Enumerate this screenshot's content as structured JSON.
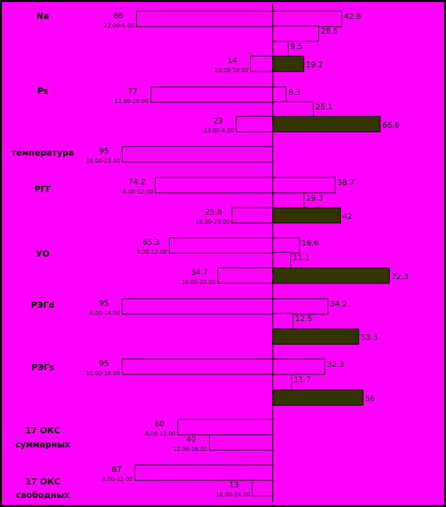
{
  "chart_data": {
    "type": "bar",
    "orientation": "horizontal-diverging",
    "background_color": "#ff00ff",
    "bar_outline_color": "#000000",
    "open_bar_color": "#ff00ff",
    "filled_bar_color": "#333300",
    "groups": [
      {
        "label": [
          "Na"
        ],
        "left": [
          {
            "value": "86",
            "time": "22.00-6.00"
          },
          {
            "value": "14",
            "time": "10.00-14.00"
          }
        ],
        "right": [
          {
            "value": "42.8",
            "filled": false
          },
          {
            "value": "28.5",
            "filled": false
          },
          {
            "value": "9.5",
            "filled": false
          },
          {
            "value": "19.2",
            "filled": true
          }
        ]
      },
      {
        "label": [
          "Ps"
        ],
        "left": [
          {
            "value": "77",
            "time": "12.00-20.00"
          },
          {
            "value": "23",
            "time": "23.00-4.00"
          }
        ],
        "right": [
          {
            "value": "8.3",
            "filled": false
          },
          {
            "value": "25.1",
            "filled": false
          },
          {
            "value": "66.6",
            "filled": true
          }
        ]
      },
      {
        "label": [
          "температура"
        ],
        "left": [
          {
            "value": "95",
            "time": "18.00-23.00"
          }
        ],
        "right": []
      },
      {
        "label": [
          "РГГ"
        ],
        "left": [
          {
            "value": "74.2",
            "time": "4.00-12.00"
          },
          {
            "value": "25.8",
            "time": "16.00-20.00"
          }
        ],
        "right": [
          {
            "value": "38.7",
            "filled": false
          },
          {
            "value": "19.3",
            "filled": false
          },
          {
            "value": "42",
            "filled": true
          }
        ]
      },
      {
        "label": [
          "УО"
        ],
        "left": [
          {
            "value": "65.3",
            "time": "8.00-12.00"
          },
          {
            "value": "34.7",
            "time": "16.00-20.00"
          }
        ],
        "right": [
          {
            "value": "16.6",
            "filled": false
          },
          {
            "value": "11.1",
            "filled": false
          },
          {
            "value": "72.3",
            "filled": true
          }
        ]
      },
      {
        "label": [
          "РЭГd"
        ],
        "left": [
          {
            "value": "95",
            "time": "8.00-14.00"
          }
        ],
        "right": [
          {
            "value": "34.2",
            "filled": false
          },
          {
            "value": "12.5",
            "filled": false
          },
          {
            "value": "53.3",
            "filled": true
          }
        ]
      },
      {
        "label": [
          "РЭГs"
        ],
        "left": [
          {
            "value": "95",
            "time": "10.00-18.00"
          }
        ],
        "right": [
          {
            "value": "32.3",
            "filled": false
          },
          {
            "value": "11.7",
            "filled": false
          },
          {
            "value": "56",
            "filled": true
          }
        ]
      },
      {
        "label": [
          "17 ОКС",
          "суммарных"
        ],
        "left": [
          {
            "value": "60",
            "time": "8.00-12.00"
          },
          {
            "value": "40",
            "time": "12.00-16.00"
          }
        ],
        "right": []
      },
      {
        "label": [
          "17 ОКС",
          "свободных"
        ],
        "left": [
          {
            "value": "87",
            "time": "8.00-12.00"
          },
          {
            "value": "13",
            "time": "16.00-24.00"
          }
        ],
        "right": []
      }
    ]
  }
}
